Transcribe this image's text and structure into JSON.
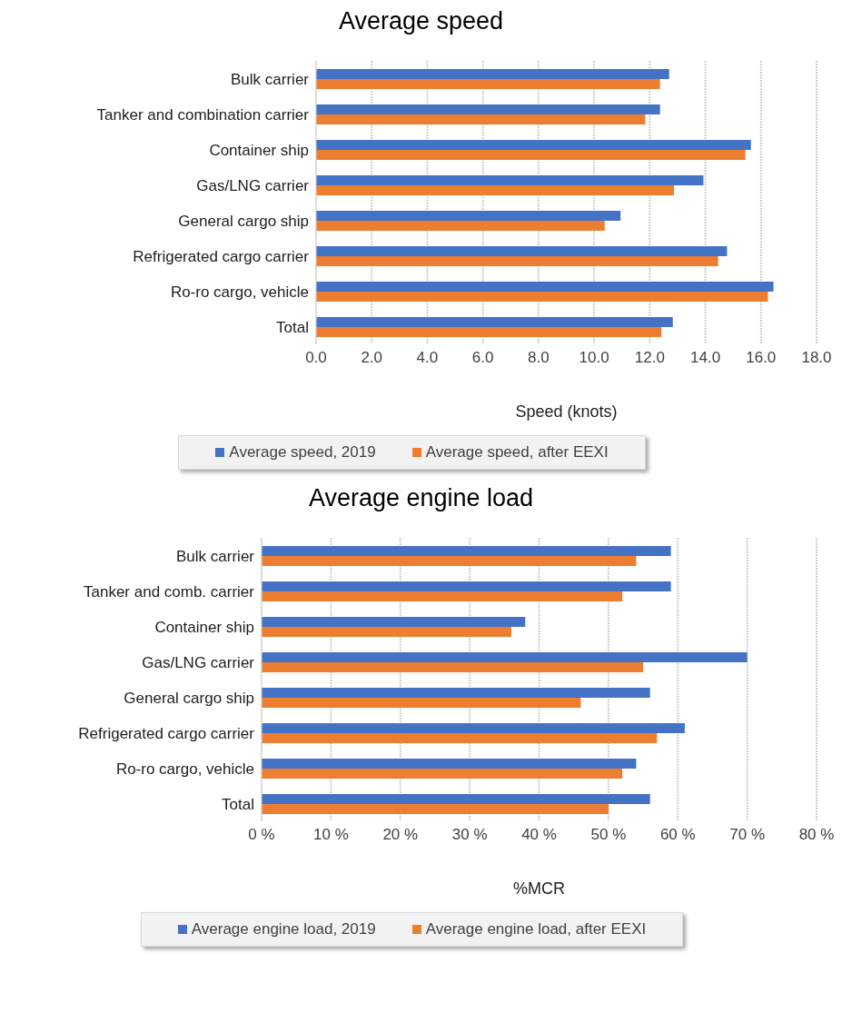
{
  "chart_data": [
    {
      "type": "bar",
      "orientation": "horizontal",
      "title": "Average speed",
      "xlabel": "Speed (knots)",
      "categories": [
        "Bulk carrier",
        "Tanker and combination carrier",
        "Container ship",
        "Gas/LNG carrier",
        "General cargo ship",
        "Refrigerated cargo carrier",
        "Ro-ro cargo, vehicle",
        "Total"
      ],
      "series": [
        {
          "name": "Average speed, 2019",
          "color": "#4472c4",
          "values": [
            12.7,
            12.37,
            15.64,
            13.93,
            10.95,
            14.78,
            16.45,
            12.83
          ]
        },
        {
          "name": "Average speed, after EEXI",
          "color": "#ed7d31",
          "values": [
            12.37,
            11.84,
            15.44,
            12.87,
            10.38,
            14.46,
            16.25,
            12.42
          ]
        }
      ],
      "xlim": [
        0,
        18
      ],
      "xticks": [
        {
          "value": 0,
          "label": "0.0"
        },
        {
          "value": 2,
          "label": "2.0"
        },
        {
          "value": 4,
          "label": "4.0"
        },
        {
          "value": 6,
          "label": "6.0"
        },
        {
          "value": 8,
          "label": "8.0"
        },
        {
          "value": 10,
          "label": "10.0"
        },
        {
          "value": 12,
          "label": "12.0"
        },
        {
          "value": 14,
          "label": "14.0"
        },
        {
          "value": 16,
          "label": "16.0"
        },
        {
          "value": 18,
          "label": "18.0"
        }
      ],
      "grid": "x",
      "legend": "bottom"
    },
    {
      "type": "bar",
      "orientation": "horizontal",
      "title": "Average engine load",
      "xlabel": "%MCR",
      "categories": [
        "Bulk carrier",
        "Tanker and comb. carrier",
        "Container ship",
        "Gas/LNG carrier",
        "General cargo ship",
        "Refrigerated cargo carrier",
        "Ro-ro cargo, vehicle",
        "Total"
      ],
      "series": [
        {
          "name": "Average engine load, 2019",
          "color": "#4472c4",
          "values": [
            59,
            59,
            38,
            70,
            56,
            61,
            54,
            56
          ]
        },
        {
          "name": "Average engine load, after EEXI",
          "color": "#ed7d31",
          "values": [
            54,
            52,
            36,
            55,
            46,
            57,
            52,
            50
          ]
        }
      ],
      "xlim": [
        0,
        80
      ],
      "xticks": [
        {
          "value": 0,
          "label": "0 %"
        },
        {
          "value": 10,
          "label": "10 %"
        },
        {
          "value": 20,
          "label": "20 %"
        },
        {
          "value": 30,
          "label": "30 %"
        },
        {
          "value": 40,
          "label": "40 %"
        },
        {
          "value": 50,
          "label": "50 %"
        },
        {
          "value": 60,
          "label": "60 %"
        },
        {
          "value": 70,
          "label": "70 %"
        },
        {
          "value": 80,
          "label": "80 %"
        }
      ],
      "grid": "x",
      "legend": "bottom"
    }
  ]
}
